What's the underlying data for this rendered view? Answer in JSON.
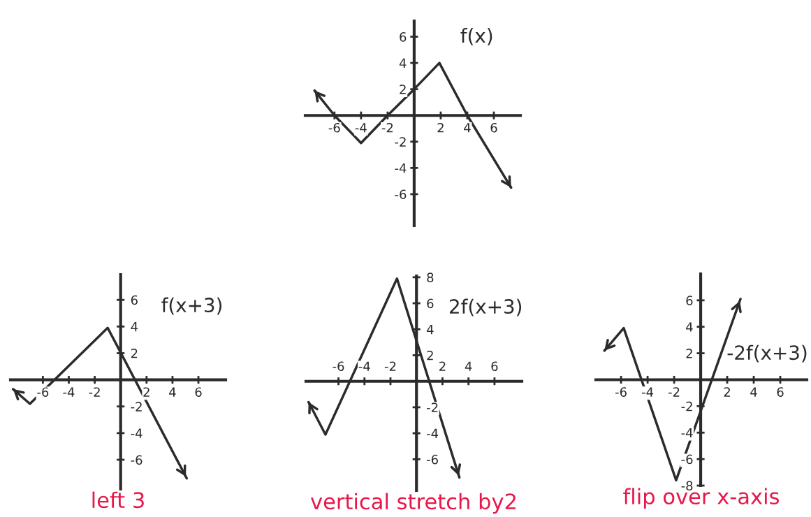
{
  "chart_data": [
    {
      "type": "line",
      "title": "f(x)",
      "x": [
        -7.5,
        -6,
        -4,
        -2,
        0,
        1.9,
        4,
        7.3
      ],
      "series": [
        {
          "color": "#2b2b2b",
          "values": [
            1.9,
            0,
            -2.1,
            0,
            2,
            4,
            0,
            -5.5
          ]
        }
      ],
      "xlim": [
        -8.2,
        8
      ],
      "ylim": [
        -8.4,
        7.2
      ],
      "xticks": [
        -6,
        -4,
        -2,
        2,
        4,
        6
      ],
      "yticks": [
        -6,
        -4,
        -2,
        2,
        4,
        6
      ],
      "marker": "none",
      "line_style": "solid",
      "grid": false,
      "legend": false
    },
    {
      "type": "line",
      "title": "f(x+3)",
      "x": [
        -8.3,
        -7,
        -1,
        5.1
      ],
      "series": [
        {
          "color": "#2b2b2b",
          "values": [
            -0.7,
            -1.8,
            3.9,
            -7.4
          ]
        }
      ],
      "xlim": [
        -8.5,
        8.1
      ],
      "ylim": [
        -8.2,
        7.9
      ],
      "xticks": [
        -6,
        -4,
        -2,
        2,
        4,
        6
      ],
      "yticks": [
        -6,
        -4,
        -2,
        2,
        4,
        6
      ],
      "marker": "none",
      "line_style": "solid",
      "grid": false,
      "legend": false,
      "annotations": [
        "left 3"
      ]
    },
    {
      "type": "line",
      "title": "2f(x+3)",
      "x": [
        -8.3,
        -7,
        -1.5,
        3.3
      ],
      "series": [
        {
          "color": "#2b2b2b",
          "values": [
            -1.6,
            -4.1,
            7.9,
            -7.4
          ]
        }
      ],
      "xlim": [
        -8.5,
        8.1
      ],
      "ylim": [
        -8.4,
        8.1
      ],
      "xticks": [
        -6,
        -4,
        -2,
        2,
        4,
        6
      ],
      "yticks": [
        -6,
        -4,
        -2,
        2,
        4,
        6,
        8
      ],
      "marker": "none",
      "line_style": "solid",
      "grid": false,
      "legend": false,
      "annotations": [
        "vertical stretch by2"
      ]
    },
    {
      "type": "line",
      "title": "-2f(x+3)",
      "x": [
        -7.25,
        -5.8,
        -1.85,
        3
      ],
      "series": [
        {
          "color": "#2b2b2b",
          "values": [
            2.2,
            3.9,
            -7.6,
            6.1
          ]
        }
      ],
      "xlim": [
        -7.9,
        8
      ],
      "ylim": [
        -8,
        8
      ],
      "xticks": [
        -6,
        -4,
        -2,
        2,
        4,
        6
      ],
      "yticks": [
        -8,
        -6,
        -4,
        -2,
        2,
        4,
        6
      ],
      "marker": "none",
      "line_style": "solid",
      "grid": false,
      "legend": false,
      "annotations": [
        "flip over x-axis"
      ]
    }
  ]
}
